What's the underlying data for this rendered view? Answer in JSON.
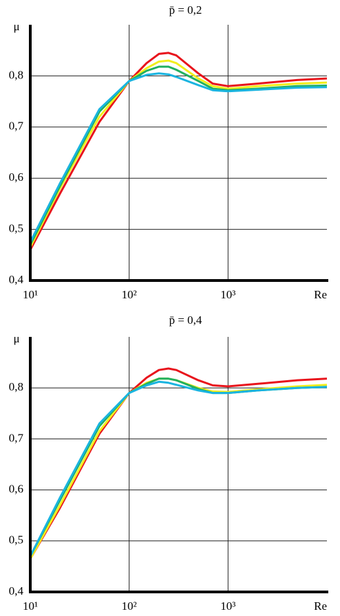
{
  "chart_data": [
    {
      "type": "line",
      "title": "p̄ = 0,2",
      "ylabel": "μ",
      "xlabel": "Re",
      "xscale": "log",
      "grid": true,
      "xlim": [
        10,
        10000
      ],
      "xticks": [
        {
          "value": 10,
          "label": "10¹"
        },
        {
          "value": 100,
          "label": "10²"
        },
        {
          "value": 1000,
          "label": "10³"
        }
      ],
      "ylim": [
        0.4,
        0.9
      ],
      "yticks": [
        {
          "value": 0.4,
          "label": "0,4"
        },
        {
          "value": 0.5,
          "label": "0,5"
        },
        {
          "value": 0.6,
          "label": "0,6"
        },
        {
          "value": 0.7,
          "label": "0,7"
        },
        {
          "value": 0.8,
          "label": "0,8"
        }
      ],
      "x": [
        10,
        20,
        50,
        100,
        150,
        200,
        250,
        300,
        500,
        700,
        1000,
        2000,
        5000,
        10000
      ],
      "series": [
        {
          "color": "#e8141c",
          "values": [
            0.46,
            0.57,
            0.71,
            0.79,
            0.825,
            0.843,
            0.845,
            0.84,
            0.805,
            0.785,
            0.78,
            0.785,
            0.792,
            0.795
          ]
        },
        {
          "color": "#f2ee1c",
          "values": [
            0.465,
            0.58,
            0.72,
            0.79,
            0.815,
            0.828,
            0.83,
            0.825,
            0.795,
            0.78,
            0.775,
            0.78,
            0.785,
            0.787
          ]
        },
        {
          "color": "#22b060",
          "values": [
            0.47,
            0.585,
            0.73,
            0.79,
            0.81,
            0.818,
            0.818,
            0.812,
            0.79,
            0.775,
            0.772,
            0.775,
            0.78,
            0.781
          ]
        },
        {
          "color": "#1ab4e0",
          "values": [
            0.475,
            0.59,
            0.735,
            0.79,
            0.802,
            0.805,
            0.803,
            0.798,
            0.782,
            0.772,
            0.77,
            0.773,
            0.777,
            0.778
          ]
        }
      ]
    },
    {
      "type": "line",
      "title": "p̄ = 0,4",
      "ylabel": "μ",
      "xlabel": "Re",
      "xscale": "log",
      "grid": true,
      "xlim": [
        10,
        10000
      ],
      "xticks": [
        {
          "value": 10,
          "label": "10¹"
        },
        {
          "value": 100,
          "label": "10²"
        },
        {
          "value": 1000,
          "label": "10³"
        }
      ],
      "ylim": [
        0.4,
        0.9
      ],
      "yticks": [
        {
          "value": 0.4,
          "label": "0,4"
        },
        {
          "value": 0.5,
          "label": "0,5"
        },
        {
          "value": 0.6,
          "label": "0,6"
        },
        {
          "value": 0.7,
          "label": "0,7"
        },
        {
          "value": 0.8,
          "label": "0,8"
        }
      ],
      "x": [
        10,
        20,
        50,
        100,
        150,
        200,
        250,
        300,
        500,
        700,
        1000,
        2000,
        5000,
        10000
      ],
      "series": [
        {
          "color": "#e8141c",
          "values": [
            0.465,
            0.565,
            0.71,
            0.79,
            0.82,
            0.835,
            0.838,
            0.835,
            0.815,
            0.805,
            0.803,
            0.808,
            0.815,
            0.818
          ]
        },
        {
          "color": "#f2ee1c",
          "values": [
            0.465,
            0.57,
            0.715,
            0.79,
            0.81,
            0.818,
            0.818,
            0.815,
            0.8,
            0.793,
            0.792,
            0.797,
            0.803,
            0.806
          ]
        },
        {
          "color": "#22b060",
          "values": [
            0.47,
            0.58,
            0.725,
            0.79,
            0.808,
            0.818,
            0.818,
            0.815,
            0.798,
            0.79,
            0.79,
            0.795,
            0.8,
            0.802
          ]
        },
        {
          "color": "#1ab4e0",
          "values": [
            0.47,
            0.585,
            0.73,
            0.79,
            0.805,
            0.812,
            0.81,
            0.806,
            0.795,
            0.79,
            0.79,
            0.795,
            0.8,
            0.802
          ]
        }
      ]
    }
  ]
}
